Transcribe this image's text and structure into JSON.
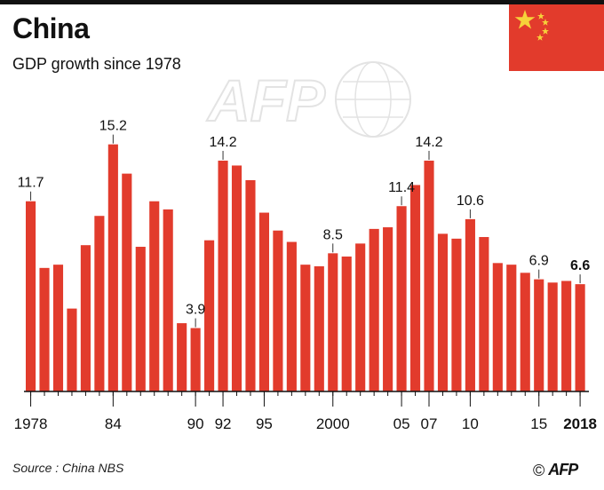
{
  "header": {
    "title": "China",
    "subtitle": "GDP growth since 1978"
  },
  "footer": {
    "source": "Source : China NBS",
    "copyright_symbol": "©",
    "agency": "AFP"
  },
  "watermark_text": "AFP",
  "colors": {
    "bar": "#e23b2c",
    "flag": "#e23b2c",
    "star": "#f6d23a",
    "axis": "#111111"
  },
  "icons": {
    "flag": "china-flag-icon",
    "watermark": "afp-watermark-icon",
    "copyright": "copyright-icon"
  },
  "chart_data": {
    "type": "bar",
    "title": "GDP growth since 1978",
    "xlabel": "",
    "ylabel": "",
    "ylim": [
      0,
      16
    ],
    "grid": false,
    "categories": [
      1978,
      1979,
      1980,
      1981,
      1982,
      1983,
      1984,
      1985,
      1986,
      1987,
      1988,
      1989,
      1990,
      1991,
      1992,
      1993,
      1994,
      1995,
      1996,
      1997,
      1998,
      1999,
      2000,
      2001,
      2002,
      2003,
      2004,
      2005,
      2006,
      2007,
      2008,
      2009,
      2010,
      2011,
      2012,
      2013,
      2014,
      2015,
      2016,
      2017,
      2018
    ],
    "values": [
      11.7,
      7.6,
      7.8,
      5.1,
      9.0,
      10.8,
      15.2,
      13.4,
      8.9,
      11.7,
      11.2,
      4.2,
      3.9,
      9.3,
      14.2,
      13.9,
      13.0,
      11.0,
      9.9,
      9.2,
      7.8,
      7.7,
      8.5,
      8.3,
      9.1,
      10.0,
      10.1,
      11.4,
      12.7,
      14.2,
      9.7,
      9.4,
      10.6,
      9.5,
      7.9,
      7.8,
      7.3,
      6.9,
      6.7,
      6.8,
      6.6
    ],
    "tick_labels": [
      {
        "year": 1978,
        "text": "1978",
        "bold": false
      },
      {
        "year": 1984,
        "text": "84",
        "bold": false
      },
      {
        "year": 1990,
        "text": "90",
        "bold": false
      },
      {
        "year": 1992,
        "text": "92",
        "bold": false
      },
      {
        "year": 1995,
        "text": "95",
        "bold": false
      },
      {
        "year": 2000,
        "text": "2000",
        "bold": false
      },
      {
        "year": 2005,
        "text": "05",
        "bold": false
      },
      {
        "year": 2007,
        "text": "07",
        "bold": false
      },
      {
        "year": 2010,
        "text": "10",
        "bold": false
      },
      {
        "year": 2015,
        "text": "15",
        "bold": false
      },
      {
        "year": 2018,
        "text": "2018",
        "bold": true
      }
    ],
    "data_labels": [
      {
        "year": 1978,
        "text": "11.7",
        "bold": false
      },
      {
        "year": 1984,
        "text": "15.2",
        "bold": false
      },
      {
        "year": 1990,
        "text": "3.9",
        "bold": false
      },
      {
        "year": 1992,
        "text": "14.2",
        "bold": false
      },
      {
        "year": 2000,
        "text": "8.5",
        "bold": false
      },
      {
        "year": 2005,
        "text": "11.4",
        "bold": false
      },
      {
        "year": 2007,
        "text": "14.2",
        "bold": false
      },
      {
        "year": 2010,
        "text": "10.6",
        "bold": false
      },
      {
        "year": 2015,
        "text": "6.9",
        "bold": false
      },
      {
        "year": 2018,
        "text": "6.6",
        "bold": true
      }
    ]
  }
}
